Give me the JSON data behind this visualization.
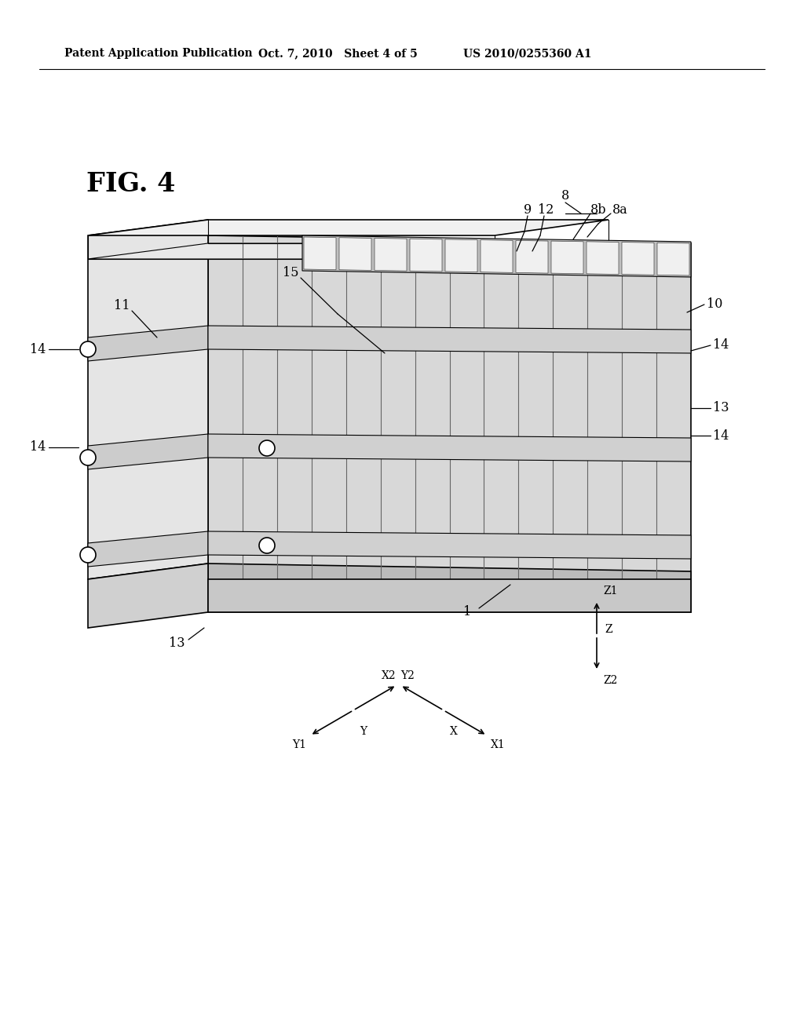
{
  "bg_color": "#ffffff",
  "header_left": "Patent Application Publication",
  "header_mid": "Oct. 7, 2010   Sheet 4 of 5",
  "header_right": "US 2010/0255360 A1",
  "fig_label": "FIG. 4"
}
